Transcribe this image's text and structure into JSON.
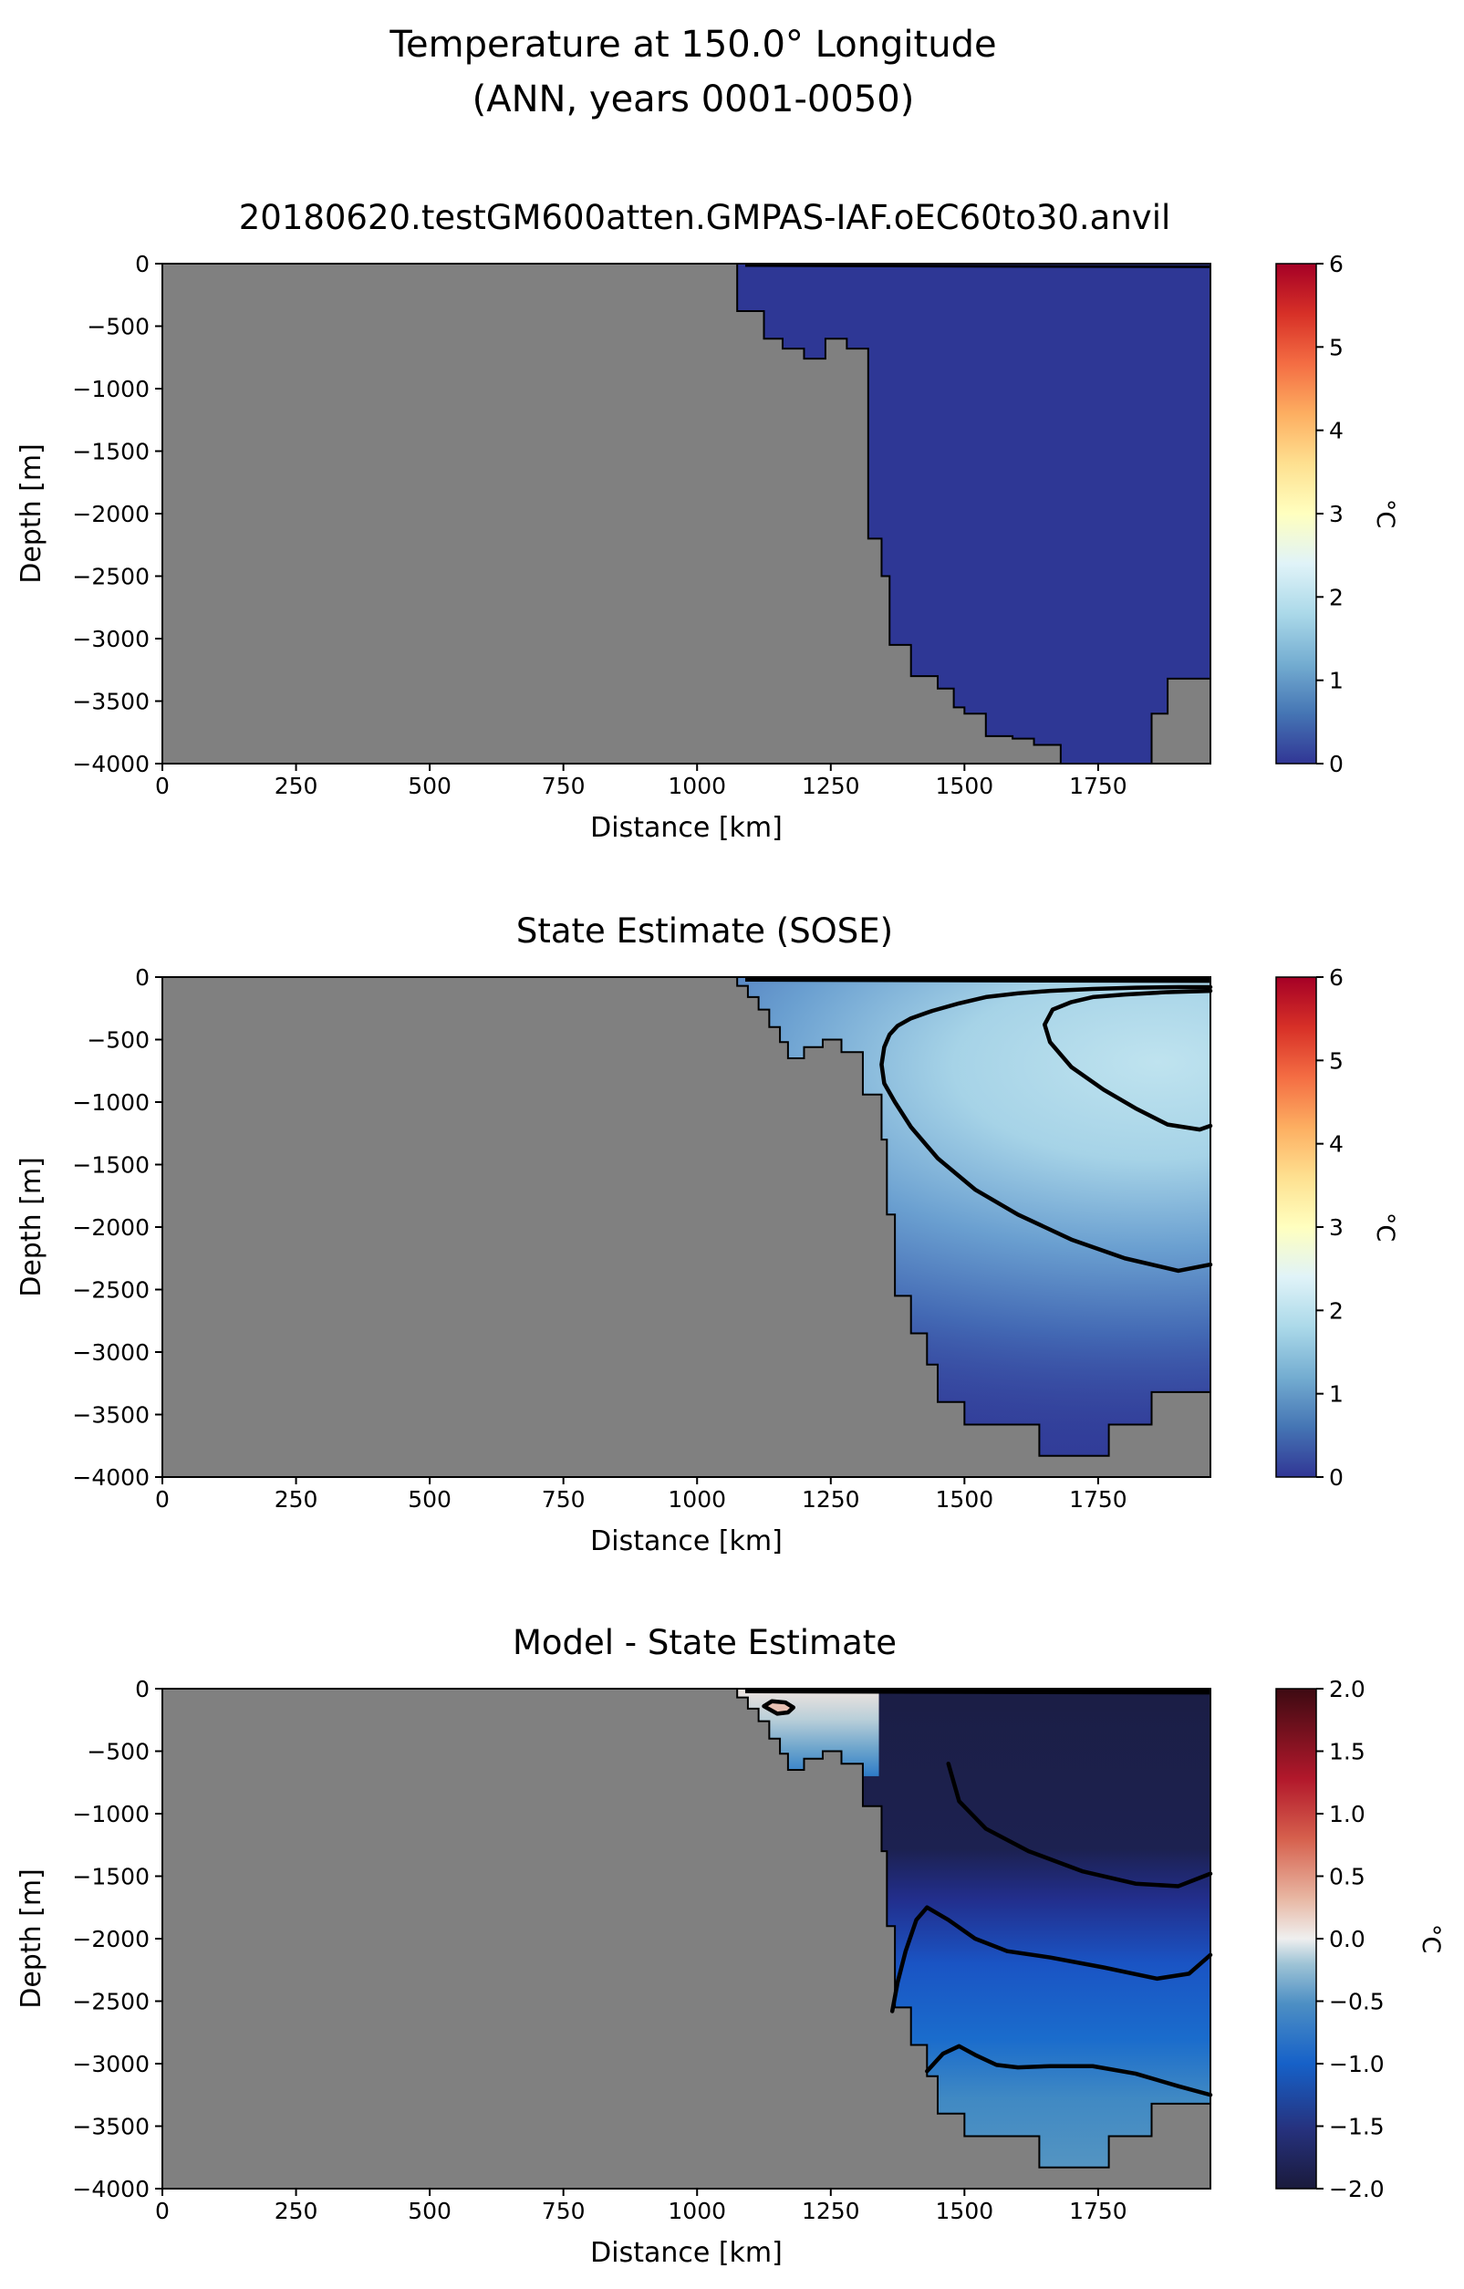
{
  "figure": {
    "title_line1": "Temperature at 150.0° Longitude",
    "title_line2": "(ANN, years 0001-0050)"
  },
  "chart_data": [
    {
      "type": "heatmap",
      "title": "20180620.testGM600atten.GMPAS-IAF.oEC60to30.anvil",
      "xlabel": "Distance [km]",
      "ylabel": "Depth [m]",
      "xlim": [
        0,
        1960
      ],
      "ylim": [
        -4000,
        0
      ],
      "xticks": [
        0,
        250,
        500,
        750,
        1000,
        1250,
        1500,
        1750
      ],
      "yticks": [
        0,
        -500,
        -1000,
        -1500,
        -2000,
        -2500,
        -3000,
        -3500,
        -4000
      ],
      "colorbar": {
        "label": "°C",
        "colormap": "RdYlBu_r",
        "range": [
          0,
          6
        ],
        "ticks": [
          0,
          1,
          2,
          3,
          4,
          5,
          6
        ]
      },
      "land_color": "#808080",
      "field_description": "nearly uniform cold water everywhere, about 0.1 °C",
      "field_value": 0.1,
      "contour_levels": [
        1.0
      ],
      "bathymetry": {
        "distance_km": [
          1075,
          1075,
          1125,
          1125,
          1160,
          1160,
          1200,
          1200,
          1240,
          1240,
          1280,
          1280,
          1320,
          1320,
          1345,
          1345,
          1360,
          1360,
          1400,
          1400,
          1450,
          1450,
          1480,
          1480,
          1500,
          1500,
          1540,
          1540,
          1590,
          1590,
          1630,
          1630,
          1680,
          1680,
          1850,
          1850,
          1880,
          1880,
          1960
        ],
        "depth_m": [
          0,
          -380,
          -380,
          -600,
          -600,
          -680,
          -680,
          -760,
          -760,
          -600,
          -600,
          -680,
          -680,
          -2200,
          -2200,
          -2500,
          -2500,
          -3050,
          -3050,
          -3300,
          -3300,
          -3400,
          -3400,
          -3550,
          -3550,
          -3600,
          -3600,
          -3780,
          -3780,
          -3800,
          -3800,
          -3850,
          -3850,
          -4000,
          -4000,
          -3600,
          -3600,
          -3320,
          -3320
        ]
      }
    },
    {
      "type": "heatmap",
      "title": "State Estimate (SOSE)",
      "xlabel": "Distance [km]",
      "ylabel": "Depth [m]",
      "xlim": [
        0,
        1960
      ],
      "ylim": [
        -4000,
        0
      ],
      "xticks": [
        0,
        250,
        500,
        750,
        1000,
        1250,
        1500,
        1750
      ],
      "yticks": [
        0,
        -500,
        -1000,
        -1500,
        -2000,
        -2500,
        -3000,
        -3500,
        -4000
      ],
      "colorbar": {
        "label": "°C",
        "colormap": "RdYlBu_r",
        "range": [
          0,
          6
        ],
        "ticks": [
          0,
          1,
          2,
          3,
          4,
          5,
          6
        ]
      },
      "land_color": "#808080",
      "field_description": "warm core (~2 °C) at 100-1000 m offshore, cooling with depth to ~0.2 °C near the bottom",
      "contour_levels": [
        1.0,
        2.0
      ],
      "contours": [
        {
          "level": 1.0,
          "distance_km": [
            1960,
            1900,
            1820,
            1740,
            1660,
            1600,
            1540,
            1490,
            1440,
            1400,
            1375,
            1360,
            1350,
            1345,
            1350,
            1370,
            1400,
            1450,
            1520,
            1600,
            1700,
            1800,
            1900,
            1960
          ],
          "depth_m": [
            -80,
            -80,
            -85,
            -95,
            -110,
            -130,
            -160,
            -210,
            -270,
            -330,
            -390,
            -460,
            -560,
            -700,
            -850,
            -1000,
            -1200,
            -1450,
            -1700,
            -1900,
            -2100,
            -2250,
            -2350,
            -2300
          ]
        },
        {
          "level": 2.0,
          "distance_km": [
            1960,
            1880,
            1800,
            1740,
            1700,
            1665,
            1650,
            1660,
            1700,
            1760,
            1820,
            1880,
            1940,
            1960
          ],
          "depth_m": [
            -110,
            -120,
            -140,
            -160,
            -200,
            -260,
            -380,
            -520,
            -720,
            -900,
            -1050,
            -1180,
            -1220,
            -1190
          ]
        }
      ],
      "bathymetry": {
        "distance_km": [
          1075,
          1075,
          1095,
          1095,
          1115,
          1115,
          1135,
          1135,
          1155,
          1155,
          1170,
          1170,
          1200,
          1200,
          1235,
          1235,
          1270,
          1270,
          1310,
          1310,
          1345,
          1345,
          1355,
          1355,
          1370,
          1370,
          1400,
          1400,
          1430,
          1430,
          1450,
          1450,
          1500,
          1500,
          1640,
          1640,
          1770,
          1770,
          1850,
          1850,
          1960
        ],
        "depth_m": [
          0,
          -70,
          -70,
          -160,
          -160,
          -260,
          -260,
          -400,
          -400,
          -520,
          -520,
          -650,
          -650,
          -560,
          -560,
          -500,
          -500,
          -600,
          -600,
          -940,
          -940,
          -1300,
          -1300,
          -1900,
          -1900,
          -2550,
          -2550,
          -2850,
          -2850,
          -3100,
          -3100,
          -3400,
          -3400,
          -3580,
          -3580,
          -3830,
          -3830,
          -3580,
          -3580,
          -3320,
          -3320
        ]
      }
    },
    {
      "type": "heatmap",
      "title": "Model - State Estimate",
      "xlabel": "Distance [km]",
      "ylabel": "Depth [m]",
      "xlim": [
        0,
        1960
      ],
      "ylim": [
        -4000,
        0
      ],
      "xticks": [
        0,
        250,
        500,
        750,
        1000,
        1250,
        1500,
        1750
      ],
      "yticks": [
        0,
        -500,
        -1000,
        -1500,
        -2000,
        -2500,
        -3000,
        -3500,
        -4000
      ],
      "colorbar": {
        "label": "°C",
        "colormap": "RdBu_r",
        "range": [
          -2.0,
          2.0
        ],
        "ticks": [
          -2.0,
          -1.5,
          -1.0,
          -0.5,
          0.0,
          0.5,
          1.0,
          1.5,
          2.0
        ]
      },
      "land_color": "#808080",
      "field_description": "strong negative bias (< -2 °C) in upper 1500 m offshore, ~-1.5 °C at 2000-2500 m, ~-0.8 °C near bottom; slightly positive on upper shelf",
      "contour_levels": [
        -2.0,
        -1.5,
        -1.0,
        -0.5,
        0.0,
        0.5
      ],
      "contours": [
        {
          "level": -1.5,
          "distance_km": [
            1960,
            1900,
            1820,
            1720,
            1620,
            1540,
            1490,
            1470
          ],
          "depth_m": [
            -1480,
            -1580,
            -1560,
            -1460,
            -1300,
            -1120,
            -900,
            -600
          ]
        },
        {
          "level": -1.0,
          "distance_km": [
            1960,
            1920,
            1860,
            1760,
            1660,
            1580,
            1520,
            1470,
            1430,
            1410,
            1390,
            1375,
            1365
          ],
          "depth_m": [
            -2130,
            -2280,
            -2320,
            -2230,
            -2150,
            -2100,
            -2000,
            -1850,
            -1750,
            -1850,
            -2100,
            -2350,
            -2580
          ]
        },
        {
          "level": -0.5,
          "distance_km": [
            1960,
            1900,
            1820,
            1740,
            1660,
            1600,
            1560,
            1520,
            1490,
            1460,
            1430
          ],
          "depth_m": [
            -3250,
            -3180,
            -3080,
            -3020,
            -3020,
            -3030,
            -3010,
            -2930,
            -2860,
            -2920,
            -3060
          ]
        },
        {
          "level": 0.5,
          "distance_km": [
            1125,
            1140,
            1165,
            1180,
            1170,
            1150,
            1125
          ],
          "depth_m": [
            -140,
            -100,
            -110,
            -150,
            -190,
            -200,
            -140
          ]
        }
      ],
      "bathymetry": {
        "distance_km": [
          1075,
          1075,
          1095,
          1095,
          1115,
          1115,
          1135,
          1135,
          1155,
          1155,
          1170,
          1170,
          1200,
          1200,
          1235,
          1235,
          1270,
          1270,
          1310,
          1310,
          1345,
          1345,
          1355,
          1355,
          1370,
          1370,
          1400,
          1400,
          1430,
          1430,
          1450,
          1450,
          1500,
          1500,
          1640,
          1640,
          1770,
          1770,
          1850,
          1850,
          1960
        ],
        "depth_m": [
          0,
          -70,
          -70,
          -160,
          -160,
          -260,
          -260,
          -400,
          -400,
          -520,
          -520,
          -650,
          -650,
          -560,
          -560,
          -500,
          -500,
          -600,
          -600,
          -940,
          -940,
          -1300,
          -1300,
          -1900,
          -1900,
          -2550,
          -2550,
          -2850,
          -2850,
          -3100,
          -3100,
          -3400,
          -3400,
          -3580,
          -3580,
          -3830,
          -3830,
          -3580,
          -3580,
          -3320,
          -3320
        ]
      }
    }
  ]
}
